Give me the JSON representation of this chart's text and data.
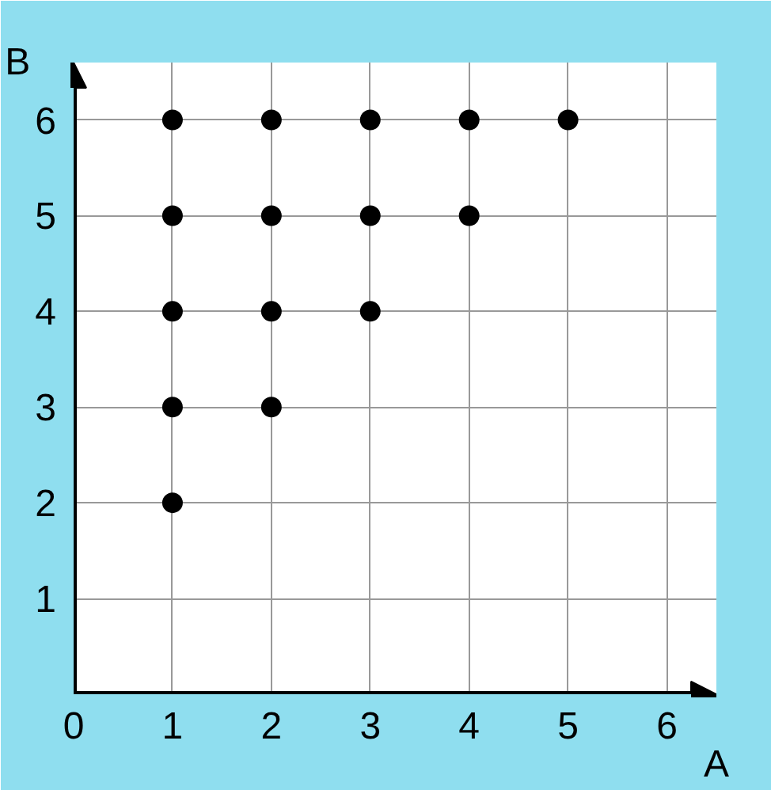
{
  "chart_data": {
    "type": "scatter",
    "xlabel": "A",
    "ylabel": "B",
    "x": [
      1,
      1,
      1,
      1,
      1,
      2,
      2,
      2,
      2,
      3,
      3,
      3,
      4,
      4,
      5
    ],
    "values": [
      2,
      3,
      4,
      5,
      6,
      3,
      4,
      5,
      6,
      4,
      5,
      6,
      5,
      6,
      6
    ],
    "color": "#000000",
    "marker": "circle",
    "grid": true,
    "xlim": [
      0,
      6.5
    ],
    "ylim": [
      0,
      6.6
    ],
    "xticks": [
      0,
      1,
      2,
      3,
      4,
      5,
      6
    ],
    "yticks": [
      {
        "value": 0,
        "label": null
      },
      1,
      2,
      3,
      4,
      5,
      6
    ]
  }
}
